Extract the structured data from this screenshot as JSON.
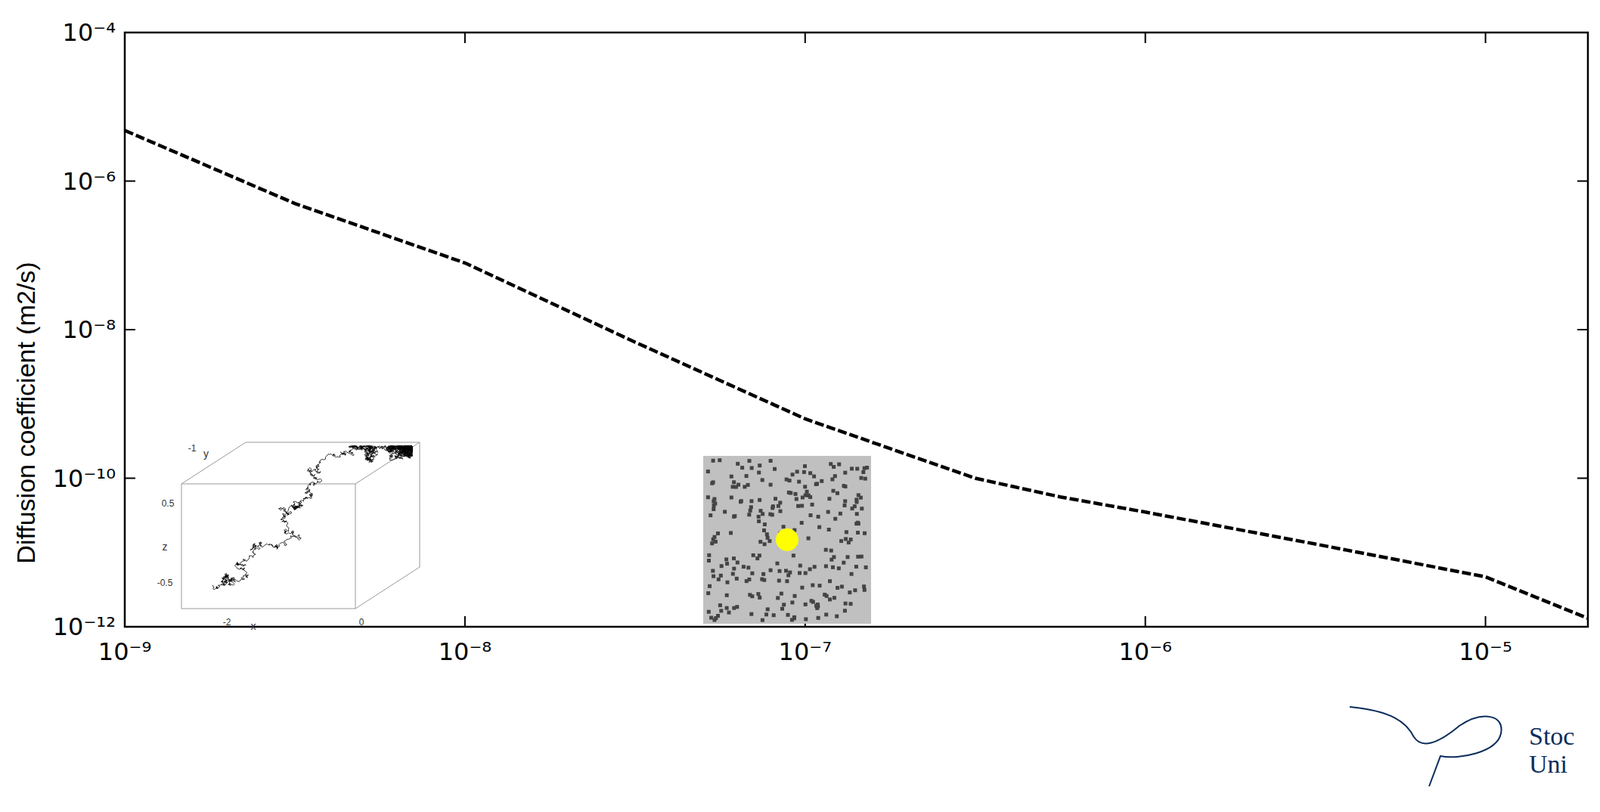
{
  "chart_data": {
    "type": "line",
    "ylabel": "Diffusion coefficient (m2/s)",
    "log": true,
    "color": "#000000",
    "line_style": "dashed",
    "x": [
      1e-09,
      3.16e-09,
      1e-08,
      3.16e-08,
      1e-07,
      1.78e-07,
      3.16e-07,
      5.62e-07,
      1e-06,
      3.16e-06,
      1e-05,
      2e-05
    ],
    "values": [
      4.8e-06,
      5e-07,
      7.9e-08,
      6.8e-09,
      6.3e-10,
      2.5e-10,
      1e-10,
      5.6e-11,
      3.5e-11,
      1.3e-11,
      4.7e-12,
      1.3e-12
    ],
    "xlim": [
      1e-09,
      2e-05
    ],
    "ylim": [
      1e-12,
      0.0001
    ],
    "xticks": [
      {
        "value": 1e-09,
        "label": "10⁻⁹"
      },
      {
        "value": 1e-08,
        "label": "10⁻⁸"
      },
      {
        "value": 1e-07,
        "label": "10⁻⁷"
      },
      {
        "value": 1e-06,
        "label": "10⁻⁶"
      },
      {
        "value": 1e-05,
        "label": "10⁻⁵"
      }
    ],
    "yticks": [
      {
        "value": 1e-12,
        "label": "10⁻¹²"
      },
      {
        "value": 1e-10,
        "label": "10⁻¹⁰"
      },
      {
        "value": 1e-08,
        "label": "10⁻⁸"
      },
      {
        "value": 1e-06,
        "label": "10⁻⁶"
      },
      {
        "value": 0.0001,
        "label": "10⁻⁴"
      }
    ],
    "annotations": [
      "x",
      "y",
      "z",
      "0.5",
      "0",
      "-0.5",
      "-1",
      "-2",
      "Stoc",
      "Uni"
    ]
  }
}
